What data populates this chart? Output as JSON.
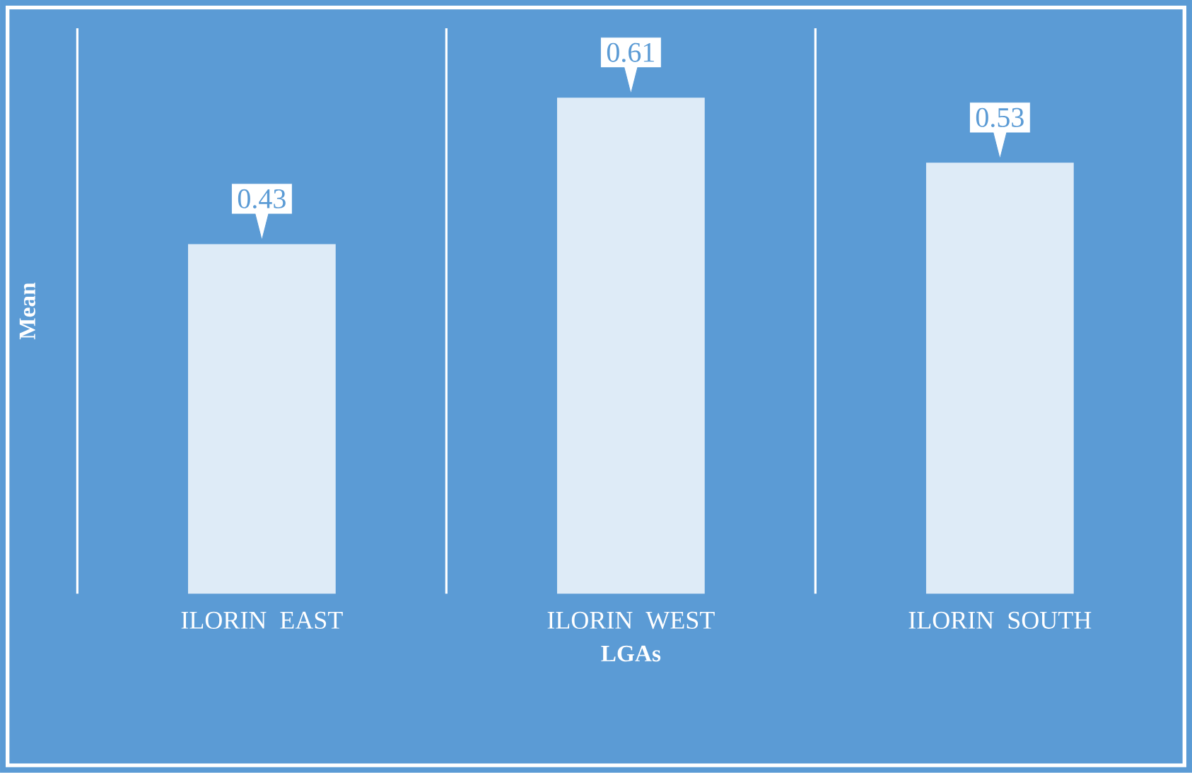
{
  "chart_data": {
    "type": "bar",
    "xlabel": "LGAs",
    "ylabel": "Mean",
    "categories": [
      "ILORIN EAST",
      "ILORIN WEST",
      "ILORIN SOUTH"
    ],
    "values": [
      0.43,
      0.61,
      0.53
    ],
    "color": "#deebf7",
    "data_labels": true,
    "grid": "x"
  }
}
